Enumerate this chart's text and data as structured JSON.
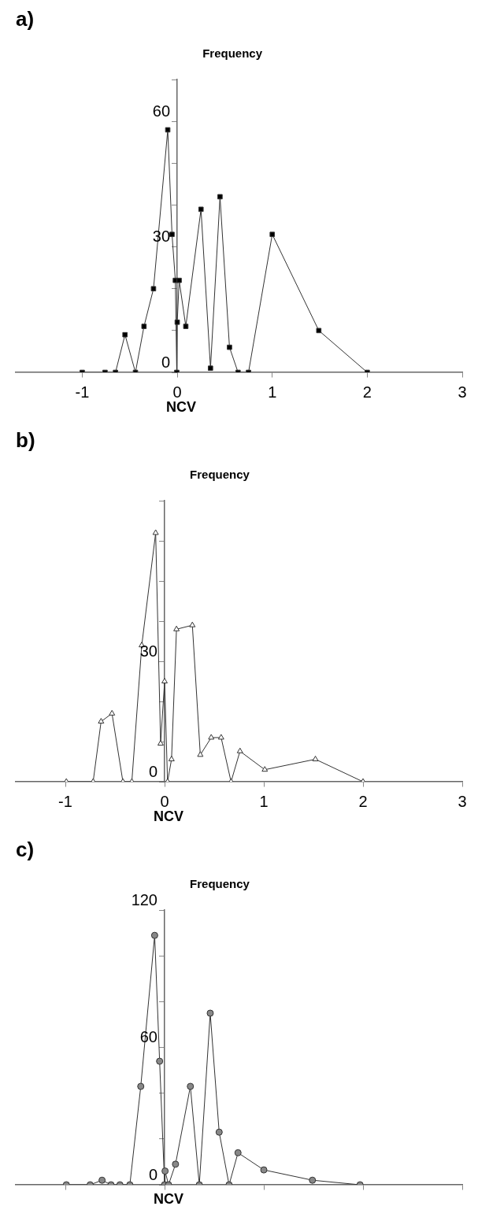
{
  "chart_data": [
    {
      "type": "line",
      "title": "a)",
      "ylabel": "Frequency",
      "xlabel": "NCV",
      "marker": "square",
      "grid": false,
      "legend": false,
      "xlim": [
        -1.7,
        3
      ],
      "xticks": [
        -1,
        0,
        1,
        2,
        3
      ],
      "ylim": [
        0,
        70
      ],
      "yticks": [
        0,
        {
          "value": 10,
          "label": null
        },
        {
          "value": 20,
          "label": null
        },
        30,
        {
          "value": 40,
          "label": null
        },
        {
          "value": 50,
          "label": null
        },
        60,
        {
          "value": 70,
          "label": null
        }
      ],
      "series": [
        {
          "color": "#000000",
          "x": [
            -1.0,
            -0.76,
            -0.65,
            -0.55,
            -0.44,
            -0.35,
            -0.25,
            -0.1,
            -0.055,
            -0.02,
            -0.005,
            0,
            0.02,
            0.09,
            0.25,
            0.35,
            0.45,
            0.55,
            0.64,
            0.75,
            1.0,
            1.49,
            2.0
          ],
          "values": [
            0,
            0,
            0,
            9,
            0,
            11,
            20,
            58,
            33,
            22,
            0,
            12,
            22,
            11,
            39,
            1,
            42,
            6,
            0,
            0,
            33,
            10,
            0
          ]
        }
      ]
    },
    {
      "type": "line",
      "title": "b)",
      "ylabel": "Frequency",
      "xlabel": "NCV",
      "marker": "triangle",
      "grid": false,
      "legend": false,
      "xlim": [
        -1.5,
        3
      ],
      "xticks": [
        -1,
        0,
        1,
        2,
        3
      ],
      "ylim": [
        0,
        70
      ],
      "yticks": [
        0,
        {
          "value": 10,
          "label": null
        },
        {
          "value": 20,
          "label": null
        },
        30,
        {
          "value": 40,
          "label": null
        },
        {
          "value": 50,
          "label": null
        },
        {
          "value": 60,
          "label": null
        },
        {
          "value": 70,
          "label": null
        }
      ],
      "series": [
        {
          "color": "#ffffff",
          "x": [
            -0.99,
            -0.72,
            -0.64,
            -0.53,
            -0.42,
            -0.33,
            -0.23,
            -0.09,
            -0.04,
            0.0,
            0.03,
            0.07,
            0.12,
            0.28,
            0.36,
            0.47,
            0.57,
            0.67,
            0.76,
            1.01,
            1.52,
            2.0
          ],
          "values": [
            0,
            0,
            15,
            17,
            0,
            0,
            34,
            62,
            9.5,
            25,
            0,
            5.6,
            38,
            39,
            6.7,
            11,
            11,
            0,
            7.6,
            3,
            5.6,
            0
          ]
        }
      ]
    },
    {
      "type": "line",
      "title": "c)",
      "ylabel": "Frequency",
      "xlabel": "NCV",
      "marker": "circle",
      "grid": false,
      "legend": false,
      "tick_labels": "y",
      "xlim": [
        -1.5,
        3
      ],
      "xticks": [
        -1,
        0,
        1,
        2,
        3
      ],
      "ylim": [
        0,
        120
      ],
      "yticks": [
        0,
        {
          "value": 20,
          "label": null
        },
        {
          "value": 40,
          "label": null
        },
        60,
        {
          "value": 80,
          "label": null
        },
        {
          "value": 100,
          "label": null
        },
        120
      ],
      "series": [
        {
          "color": "#888888",
          "x": [
            -0.99,
            -0.75,
            -0.63,
            -0.54,
            -0.45,
            -0.35,
            -0.24,
            -0.1,
            -0.05,
            0,
            0.005,
            0.04,
            0.11,
            0.26,
            0.35,
            0.46,
            0.55,
            0.65,
            0.74,
            1.0,
            1.49,
            1.97
          ],
          "values": [
            0,
            0,
            2,
            0,
            0,
            0,
            43,
            109,
            54,
            0,
            6,
            0,
            9,
            43,
            0,
            75,
            23,
            0,
            14,
            6.5,
            2,
            0
          ]
        }
      ]
    }
  ]
}
